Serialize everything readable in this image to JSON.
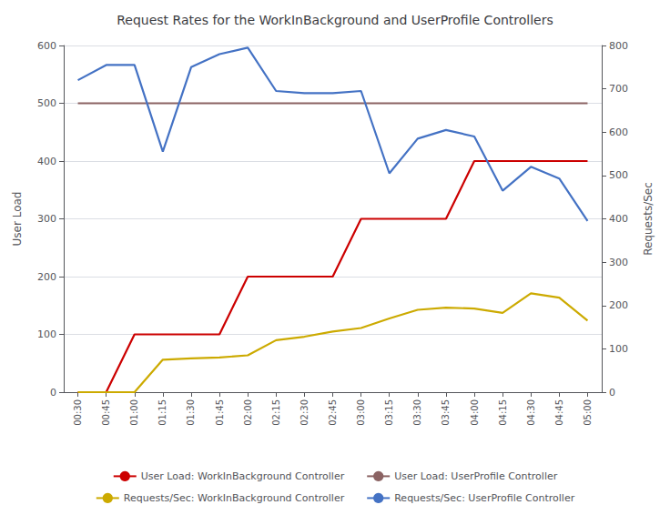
{
  "chart_data": {
    "type": "line",
    "title": "Request Rates for the WorkInBackground and UserProfile Controllers",
    "ylabel": "User Load",
    "y2label": "Requests/Sec",
    "categories": [
      "00:30",
      "00:45",
      "01:00",
      "01:15",
      "01:30",
      "01:45",
      "02:00",
      "02:15",
      "02:30",
      "02:45",
      "03:00",
      "03:15",
      "03:30",
      "03:45",
      "04:00",
      "04:15",
      "04:30",
      "04:45",
      "05:00"
    ],
    "series": [
      {
        "name": "User Load: WorkInBackground Controller",
        "color": "#cc0000",
        "values": [
          0,
          0,
          100,
          100,
          100,
          100,
          200,
          200,
          200,
          200,
          300,
          300,
          300,
          300,
          400,
          400,
          400,
          400,
          400
        ]
      },
      {
        "name": "User Load: UserProfile Controller",
        "color": "#8B6363",
        "values": [
          500,
          500,
          500,
          500,
          500,
          500,
          500,
          500,
          500,
          500,
          500,
          500,
          500,
          500,
          500,
          500,
          500,
          500,
          500
        ]
      },
      {
        "name": "Requests/Sec: WorkInBackground Controller",
        "color": "#ccaa00",
        "axis": "y2",
        "values": [
          0,
          0,
          0,
          75,
          78,
          80,
          85,
          120,
          128,
          140,
          148,
          170,
          190,
          195,
          193,
          183,
          228,
          218,
          165
        ]
      },
      {
        "name": "Requests/Sec: UserProfile Controller",
        "color": "#4472c4",
        "axis": "y2",
        "values": [
          720,
          755,
          755,
          555,
          750,
          780,
          795,
          695,
          690,
          690,
          695,
          505,
          585,
          605,
          590,
          465,
          520,
          493,
          395
        ]
      }
    ],
    "ylim": [
      0,
      600
    ],
    "yticks": [
      0,
      100,
      200,
      300,
      400,
      500,
      600
    ],
    "y2lim": [
      0,
      800
    ],
    "y2ticks": [
      0,
      100,
      200,
      300,
      400,
      500,
      600,
      700,
      800
    ],
    "grid": true,
    "legend": "bottom"
  }
}
